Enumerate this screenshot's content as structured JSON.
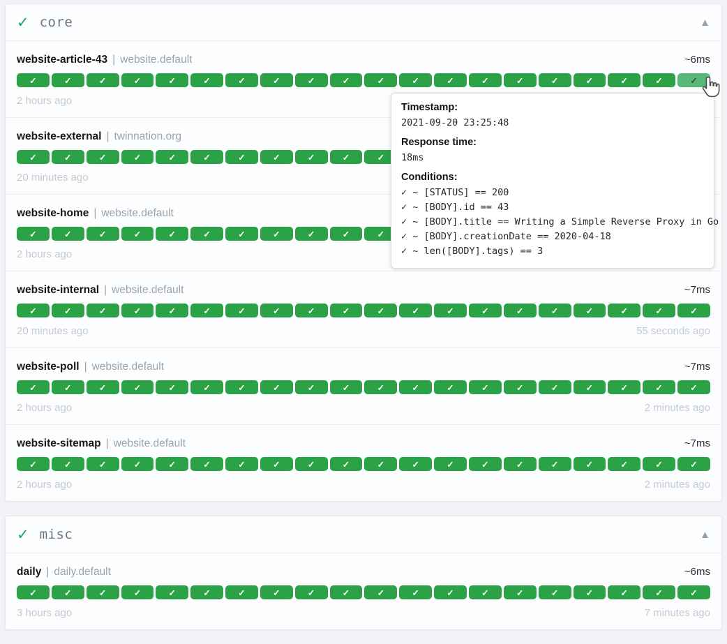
{
  "icons": {
    "group_check": "✓",
    "collapse_arrow": "▲",
    "badge_check": "✓",
    "condition_check": "✓"
  },
  "colors": {
    "badge_green": "#2aa245",
    "badge_hover_green": "#57b877",
    "group_check_green": "#1aa35c",
    "page_background": "#f1f3f6"
  },
  "groups": [
    {
      "name": "core",
      "entries": [
        {
          "name": "website-article-43",
          "separator": "|",
          "target": "website.default",
          "response_time": "~6ms",
          "badge_count": 20,
          "last_badge_hovered": true,
          "footer_left": "2 hours ago",
          "footer_right": ""
        },
        {
          "name": "website-external",
          "separator": "|",
          "target": "twinnation.org",
          "response_time": "",
          "badge_count": 20,
          "last_badge_hovered": false,
          "footer_left": "20 minutes ago",
          "footer_right": ""
        },
        {
          "name": "website-home",
          "separator": "|",
          "target": "website.default",
          "response_time": "",
          "badge_count": 20,
          "last_badge_hovered": false,
          "footer_left": "2 hours ago",
          "footer_right": ""
        },
        {
          "name": "website-internal",
          "separator": "|",
          "target": "website.default",
          "response_time": "~7ms",
          "badge_count": 20,
          "last_badge_hovered": false,
          "footer_left": "20 minutes ago",
          "footer_right": "55 seconds ago"
        },
        {
          "name": "website-poll",
          "separator": "|",
          "target": "website.default",
          "response_time": "~7ms",
          "badge_count": 20,
          "last_badge_hovered": false,
          "footer_left": "2 hours ago",
          "footer_right": "2 minutes ago"
        },
        {
          "name": "website-sitemap",
          "separator": "|",
          "target": "website.default",
          "response_time": "~7ms",
          "badge_count": 20,
          "last_badge_hovered": false,
          "footer_left": "2 hours ago",
          "footer_right": "2 minutes ago"
        }
      ]
    },
    {
      "name": "misc",
      "entries": [
        {
          "name": "daily",
          "separator": "|",
          "target": "daily.default",
          "response_time": "~6ms",
          "badge_count": 20,
          "last_badge_hovered": false,
          "footer_left": "3 hours ago",
          "footer_right": "7 minutes ago"
        }
      ]
    }
  ],
  "tooltip": {
    "timestamp_label": "Timestamp:",
    "timestamp": "2021-09-20 23:25:48",
    "response_time_label": "Response time:",
    "response_time": "18ms",
    "conditions_label": "Conditions:",
    "conditions": [
      "~ [STATUS] == 200",
      "~ [BODY].id == 43",
      "~ [BODY].title == Writing a Simple Reverse Proxy in Go",
      "~ [BODY].creationDate == 2020-04-18",
      "~ len([BODY].tags) == 3"
    ]
  }
}
